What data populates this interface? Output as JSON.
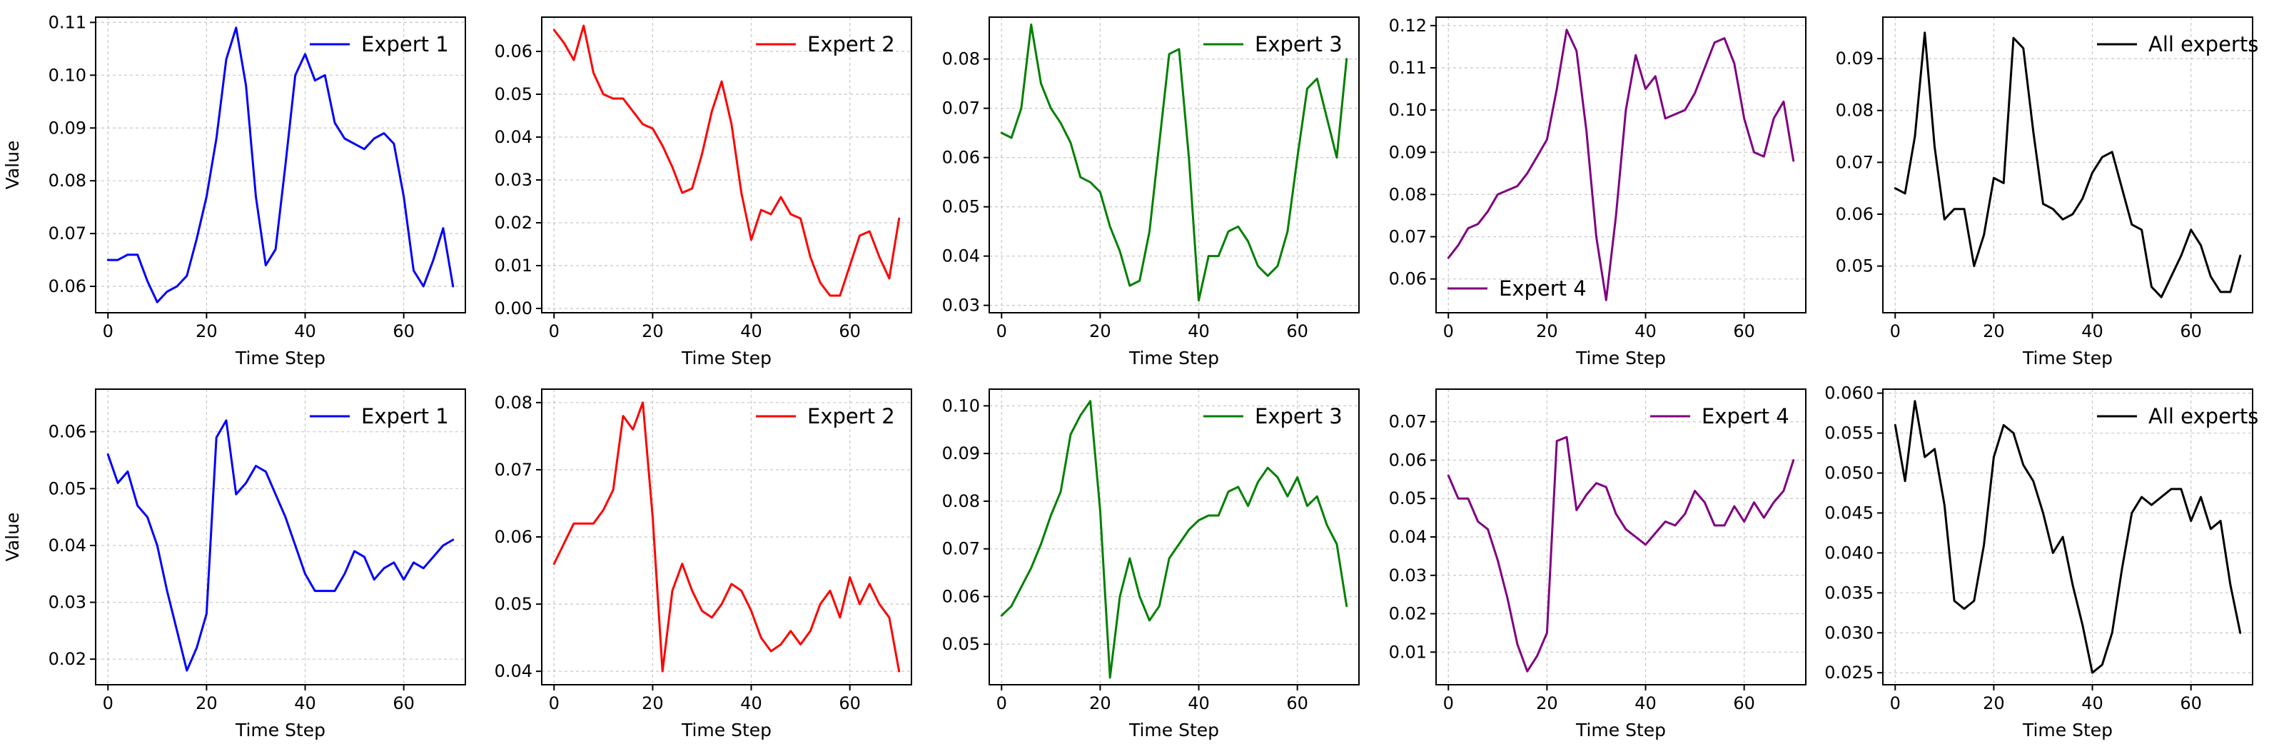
{
  "chart_data": [
    {
      "type": "line",
      "panel": "row1-col1",
      "xlabel": "Time Step",
      "ylabel": "Value",
      "xlim": [
        -2.5,
        72.5
      ],
      "ylim": [
        0.055,
        0.111
      ],
      "xticks": [
        0,
        20,
        40,
        60
      ],
      "yticks": [
        0.06,
        0.07,
        0.08,
        0.09,
        0.1,
        0.11
      ],
      "tick_decimals": 2,
      "grid": true,
      "legend": "top-right",
      "series": [
        {
          "name": "Expert 1",
          "color": "#0000ff",
          "x": [
            0,
            2,
            4,
            6,
            8,
            10,
            12,
            14,
            16,
            18,
            20,
            22,
            24,
            26,
            28,
            30,
            32,
            34,
            36,
            38,
            40,
            42,
            44,
            46,
            48,
            50,
            52,
            54,
            56,
            58,
            60,
            62,
            64,
            66,
            68,
            70
          ],
          "y": [
            0.065,
            0.065,
            0.066,
            0.066,
            0.061,
            0.057,
            0.059,
            0.06,
            0.062,
            0.069,
            0.077,
            0.088,
            0.103,
            0.109,
            0.098,
            0.077,
            0.064,
            0.067,
            0.083,
            0.1,
            0.104,
            0.099,
            0.1,
            0.091,
            0.088,
            0.087,
            0.086,
            0.088,
            0.089,
            0.087,
            0.077,
            0.063,
            0.06,
            0.065,
            0.071,
            0.06
          ]
        }
      ]
    },
    {
      "type": "line",
      "panel": "row1-col2",
      "xlabel": "Time Step",
      "ylabel": "",
      "xlim": [
        -2.5,
        72.5
      ],
      "ylim": [
        -0.001,
        0.068
      ],
      "xticks": [
        0,
        20,
        40,
        60
      ],
      "yticks": [
        0.0,
        0.01,
        0.02,
        0.03,
        0.04,
        0.05,
        0.06
      ],
      "tick_decimals": 2,
      "grid": true,
      "legend": "top-right",
      "series": [
        {
          "name": "Expert 2",
          "color": "#ff0000",
          "x": [
            0,
            2,
            4,
            6,
            8,
            10,
            12,
            14,
            16,
            18,
            20,
            22,
            24,
            26,
            28,
            30,
            32,
            34,
            36,
            38,
            40,
            42,
            44,
            46,
            48,
            50,
            52,
            54,
            56,
            58,
            60,
            62,
            64,
            66,
            68,
            70
          ],
          "y": [
            0.065,
            0.062,
            0.058,
            0.066,
            0.055,
            0.05,
            0.049,
            0.049,
            0.046,
            0.043,
            0.042,
            0.038,
            0.033,
            0.027,
            0.028,
            0.036,
            0.046,
            0.053,
            0.043,
            0.027,
            0.016,
            0.023,
            0.022,
            0.026,
            0.022,
            0.021,
            0.012,
            0.006,
            0.003,
            0.003,
            0.01,
            0.017,
            0.018,
            0.012,
            0.007,
            0.021
          ]
        }
      ]
    },
    {
      "type": "line",
      "panel": "row1-col3",
      "xlabel": "Time Step",
      "ylabel": "",
      "xlim": [
        -2.5,
        72.5
      ],
      "ylim": [
        0.0285,
        0.0885
      ],
      "xticks": [
        0,
        20,
        40,
        60
      ],
      "yticks": [
        0.03,
        0.04,
        0.05,
        0.06,
        0.07,
        0.08
      ],
      "tick_decimals": 2,
      "grid": true,
      "legend": "top-right",
      "series": [
        {
          "name": "Expert 3",
          "color": "#008000",
          "x": [
            0,
            2,
            4,
            6,
            8,
            10,
            12,
            14,
            16,
            18,
            20,
            22,
            24,
            26,
            28,
            30,
            32,
            34,
            36,
            38,
            40,
            42,
            44,
            46,
            48,
            50,
            52,
            54,
            56,
            58,
            60,
            62,
            64,
            66,
            68,
            70
          ],
          "y": [
            0.065,
            0.064,
            0.07,
            0.087,
            0.075,
            0.07,
            0.067,
            0.063,
            0.056,
            0.055,
            0.053,
            0.046,
            0.041,
            0.034,
            0.035,
            0.045,
            0.063,
            0.081,
            0.082,
            0.06,
            0.031,
            0.04,
            0.04,
            0.045,
            0.046,
            0.043,
            0.038,
            0.036,
            0.038,
            0.045,
            0.06,
            0.074,
            0.076,
            0.068,
            0.06,
            0.08
          ]
        }
      ]
    },
    {
      "type": "line",
      "panel": "row1-col4",
      "xlabel": "Time Step",
      "ylabel": "",
      "xlim": [
        -2.5,
        72.5
      ],
      "ylim": [
        0.052,
        0.122
      ],
      "xticks": [
        0,
        20,
        40,
        60
      ],
      "yticks": [
        0.06,
        0.07,
        0.08,
        0.09,
        0.1,
        0.11,
        0.12
      ],
      "tick_decimals": 2,
      "grid": true,
      "legend": "bottom-left",
      "series": [
        {
          "name": "Expert 4",
          "color": "#800080",
          "x": [
            0,
            2,
            4,
            6,
            8,
            10,
            12,
            14,
            16,
            18,
            20,
            22,
            24,
            26,
            28,
            30,
            32,
            34,
            36,
            38,
            40,
            42,
            44,
            46,
            48,
            50,
            52,
            54,
            56,
            58,
            60,
            62,
            64,
            66,
            68,
            70
          ],
          "y": [
            0.065,
            0.068,
            0.072,
            0.073,
            0.076,
            0.08,
            0.081,
            0.082,
            0.085,
            0.089,
            0.093,
            0.105,
            0.119,
            0.114,
            0.095,
            0.07,
            0.055,
            0.075,
            0.1,
            0.113,
            0.105,
            0.108,
            0.098,
            0.099,
            0.1,
            0.104,
            0.11,
            0.116,
            0.117,
            0.111,
            0.098,
            0.09,
            0.089,
            0.098,
            0.102,
            0.088
          ]
        }
      ]
    },
    {
      "type": "line",
      "panel": "row1-col5",
      "xlabel": "Time Step",
      "ylabel": "",
      "xlim": [
        -2.5,
        72.5
      ],
      "ylim": [
        0.041,
        0.098
      ],
      "xticks": [
        0,
        20,
        40,
        60
      ],
      "yticks": [
        0.05,
        0.06,
        0.07,
        0.08,
        0.09
      ],
      "tick_decimals": 2,
      "grid": true,
      "legend": "top-right",
      "series": [
        {
          "name": "All experts",
          "color": "#000000",
          "x": [
            0,
            2,
            4,
            6,
            8,
            10,
            12,
            14,
            16,
            18,
            20,
            22,
            24,
            26,
            28,
            30,
            32,
            34,
            36,
            38,
            40,
            42,
            44,
            46,
            48,
            50,
            52,
            54,
            56,
            58,
            60,
            62,
            64,
            66,
            68,
            70
          ],
          "y": [
            0.065,
            0.064,
            0.075,
            0.095,
            0.073,
            0.059,
            0.061,
            0.061,
            0.05,
            0.056,
            0.067,
            0.066,
            0.094,
            0.092,
            0.076,
            0.062,
            0.061,
            0.059,
            0.06,
            0.063,
            0.068,
            0.071,
            0.072,
            0.065,
            0.058,
            0.057,
            0.046,
            0.044,
            0.048,
            0.052,
            0.057,
            0.054,
            0.048,
            0.045,
            0.045,
            0.052
          ]
        }
      ]
    },
    {
      "type": "line",
      "panel": "row2-col1",
      "xlabel": "Time Step",
      "ylabel": "Value",
      "xlim": [
        -2.5,
        72.5
      ],
      "ylim": [
        0.0155,
        0.0675
      ],
      "xticks": [
        0,
        20,
        40,
        60
      ],
      "yticks": [
        0.02,
        0.03,
        0.04,
        0.05,
        0.06
      ],
      "tick_decimals": 2,
      "grid": true,
      "legend": "top-right",
      "series": [
        {
          "name": "Expert 1",
          "color": "#0000ff",
          "x": [
            0,
            2,
            4,
            6,
            8,
            10,
            12,
            14,
            16,
            18,
            20,
            22,
            24,
            26,
            28,
            30,
            32,
            34,
            36,
            38,
            40,
            42,
            44,
            46,
            48,
            50,
            52,
            54,
            56,
            58,
            60,
            62,
            64,
            66,
            68,
            70
          ],
          "y": [
            0.056,
            0.051,
            0.053,
            0.047,
            0.045,
            0.04,
            0.032,
            0.025,
            0.018,
            0.022,
            0.028,
            0.059,
            0.062,
            0.049,
            0.051,
            0.054,
            0.053,
            0.049,
            0.045,
            0.04,
            0.035,
            0.032,
            0.032,
            0.032,
            0.035,
            0.039,
            0.038,
            0.034,
            0.036,
            0.037,
            0.034,
            0.037,
            0.036,
            0.038,
            0.04,
            0.041
          ]
        }
      ]
    },
    {
      "type": "line",
      "panel": "row2-col2",
      "xlabel": "Time Step",
      "ylabel": "",
      "xlim": [
        -2.5,
        72.5
      ],
      "ylim": [
        0.038,
        0.082
      ],
      "xticks": [
        0,
        20,
        40,
        60
      ],
      "yticks": [
        0.04,
        0.05,
        0.06,
        0.07,
        0.08
      ],
      "tick_decimals": 2,
      "grid": true,
      "legend": "top-right",
      "series": [
        {
          "name": "Expert 2",
          "color": "#ff0000",
          "x": [
            0,
            2,
            4,
            6,
            8,
            10,
            12,
            14,
            16,
            18,
            20,
            22,
            24,
            26,
            28,
            30,
            32,
            34,
            36,
            38,
            40,
            42,
            44,
            46,
            48,
            50,
            52,
            54,
            56,
            58,
            60,
            62,
            64,
            66,
            68,
            70
          ],
          "y": [
            0.056,
            0.059,
            0.062,
            0.062,
            0.062,
            0.064,
            0.067,
            0.078,
            0.076,
            0.08,
            0.063,
            0.04,
            0.052,
            0.056,
            0.052,
            0.049,
            0.048,
            0.05,
            0.053,
            0.052,
            0.049,
            0.045,
            0.043,
            0.044,
            0.046,
            0.044,
            0.046,
            0.05,
            0.052,
            0.048,
            0.054,
            0.05,
            0.053,
            0.05,
            0.048,
            0.04
          ]
        }
      ]
    },
    {
      "type": "line",
      "panel": "row2-col3",
      "xlabel": "Time Step",
      "ylabel": "",
      "xlim": [
        -2.5,
        72.5
      ],
      "ylim": [
        0.0415,
        0.1035
      ],
      "xticks": [
        0,
        20,
        40,
        60
      ],
      "yticks": [
        0.05,
        0.06,
        0.07,
        0.08,
        0.09,
        0.1
      ],
      "tick_decimals": 2,
      "grid": true,
      "legend": "top-right",
      "series": [
        {
          "name": "Expert 3",
          "color": "#008000",
          "x": [
            0,
            2,
            4,
            6,
            8,
            10,
            12,
            14,
            16,
            18,
            20,
            22,
            24,
            26,
            28,
            30,
            32,
            34,
            36,
            38,
            40,
            42,
            44,
            46,
            48,
            50,
            52,
            54,
            56,
            58,
            60,
            62,
            64,
            66,
            68,
            70
          ],
          "y": [
            0.056,
            0.058,
            0.062,
            0.066,
            0.071,
            0.077,
            0.082,
            0.094,
            0.098,
            0.101,
            0.078,
            0.043,
            0.06,
            0.068,
            0.06,
            0.055,
            0.058,
            0.068,
            0.071,
            0.074,
            0.076,
            0.077,
            0.077,
            0.082,
            0.083,
            0.079,
            0.084,
            0.087,
            0.085,
            0.081,
            0.085,
            0.079,
            0.081,
            0.075,
            0.071,
            0.058
          ]
        }
      ]
    },
    {
      "type": "line",
      "panel": "row2-col4",
      "xlabel": "Time Step",
      "ylabel": "",
      "xlim": [
        -2.5,
        72.5
      ],
      "ylim": [
        0.0015,
        0.0785
      ],
      "xticks": [
        0,
        20,
        40,
        60
      ],
      "yticks": [
        0.01,
        0.02,
        0.03,
        0.04,
        0.05,
        0.06,
        0.07
      ],
      "tick_decimals": 2,
      "grid": true,
      "legend": "top-right",
      "series": [
        {
          "name": "Expert 4",
          "color": "#800080",
          "x": [
            0,
            2,
            4,
            6,
            8,
            10,
            12,
            14,
            16,
            18,
            20,
            22,
            24,
            26,
            28,
            30,
            32,
            34,
            36,
            38,
            40,
            42,
            44,
            46,
            48,
            50,
            52,
            54,
            56,
            58,
            60,
            62,
            64,
            66,
            68,
            70
          ],
          "y": [
            0.056,
            0.05,
            0.05,
            0.044,
            0.042,
            0.034,
            0.024,
            0.012,
            0.005,
            0.009,
            0.015,
            0.065,
            0.066,
            0.047,
            0.051,
            0.054,
            0.053,
            0.046,
            0.042,
            0.04,
            0.038,
            0.041,
            0.044,
            0.043,
            0.046,
            0.052,
            0.049,
            0.043,
            0.043,
            0.048,
            0.044,
            0.049,
            0.045,
            0.049,
            0.052,
            0.06
          ]
        }
      ]
    },
    {
      "type": "line",
      "panel": "row2-col5",
      "xlabel": "Time Step",
      "ylabel": "",
      "xlim": [
        -2.5,
        72.5
      ],
      "ylim": [
        0.0235,
        0.0605
      ],
      "xticks": [
        0,
        20,
        40,
        60
      ],
      "yticks": [
        0.025,
        0.03,
        0.035,
        0.04,
        0.045,
        0.05,
        0.055,
        0.06
      ],
      "tick_decimals": 3,
      "grid": true,
      "legend": "top-right",
      "series": [
        {
          "name": "All experts",
          "color": "#000000",
          "x": [
            0,
            2,
            4,
            6,
            8,
            10,
            12,
            14,
            16,
            18,
            20,
            22,
            24,
            26,
            28,
            30,
            32,
            34,
            36,
            38,
            40,
            42,
            44,
            46,
            48,
            50,
            52,
            54,
            56,
            58,
            60,
            62,
            64,
            66,
            68,
            70
          ],
          "y": [
            0.056,
            0.049,
            0.059,
            0.052,
            0.053,
            0.046,
            0.034,
            0.033,
            0.034,
            0.041,
            0.052,
            0.056,
            0.055,
            0.051,
            0.049,
            0.045,
            0.04,
            0.042,
            0.036,
            0.031,
            0.025,
            0.026,
            0.03,
            0.038,
            0.045,
            0.047,
            0.046,
            0.047,
            0.048,
            0.048,
            0.044,
            0.047,
            0.043,
            0.044,
            0.036,
            0.03
          ]
        }
      ]
    }
  ]
}
